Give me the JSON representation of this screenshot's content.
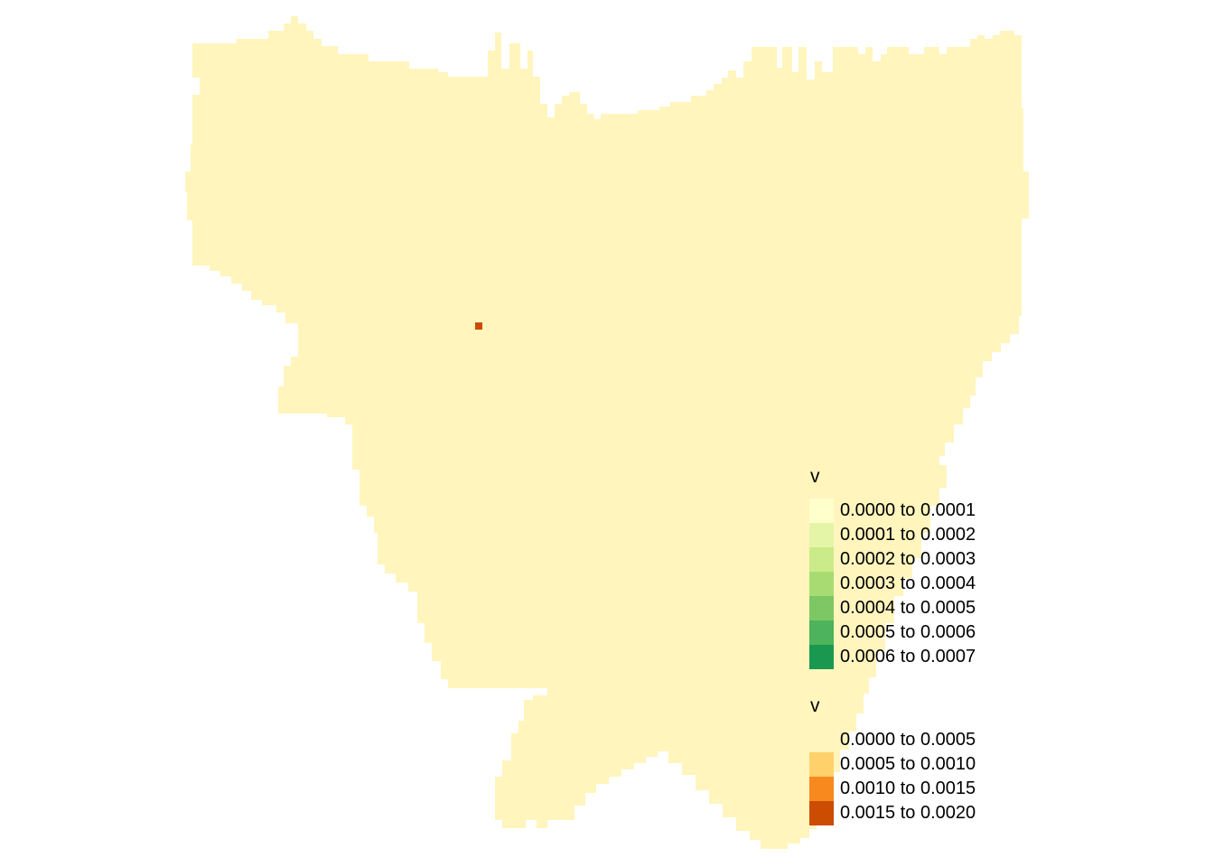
{
  "map": {
    "region_fill": "#fff5bd",
    "hotspot_fill": "#cc4c02",
    "hotspot_present": true
  },
  "legends": [
    {
      "title": "v",
      "items": [
        {
          "label": "0.0000 to 0.0001",
          "color": "#ffffcc"
        },
        {
          "label": "0.0001 to 0.0002",
          "color": "#e5f5a8"
        },
        {
          "label": "0.0002 to 0.0003",
          "color": "#cbea8a"
        },
        {
          "label": "0.0003 to 0.0004",
          "color": "#a8dc72"
        },
        {
          "label": "0.0004 to 0.0005",
          "color": "#7dc765"
        },
        {
          "label": "0.0005 to 0.0006",
          "color": "#4db35c"
        },
        {
          "label": "0.0006 to 0.0007",
          "color": "#1a9850"
        }
      ]
    },
    {
      "title": "v",
      "items": [
        {
          "label": "0.0000 to 0.0005",
          "color": "#fff5bd"
        },
        {
          "label": "0.0005 to 0.0010",
          "color": "#fed16b"
        },
        {
          "label": "0.0010 to 0.0015",
          "color": "#f8891f"
        },
        {
          "label": "0.0015 to 0.0020",
          "color": "#cc4c02"
        }
      ]
    }
  ]
}
